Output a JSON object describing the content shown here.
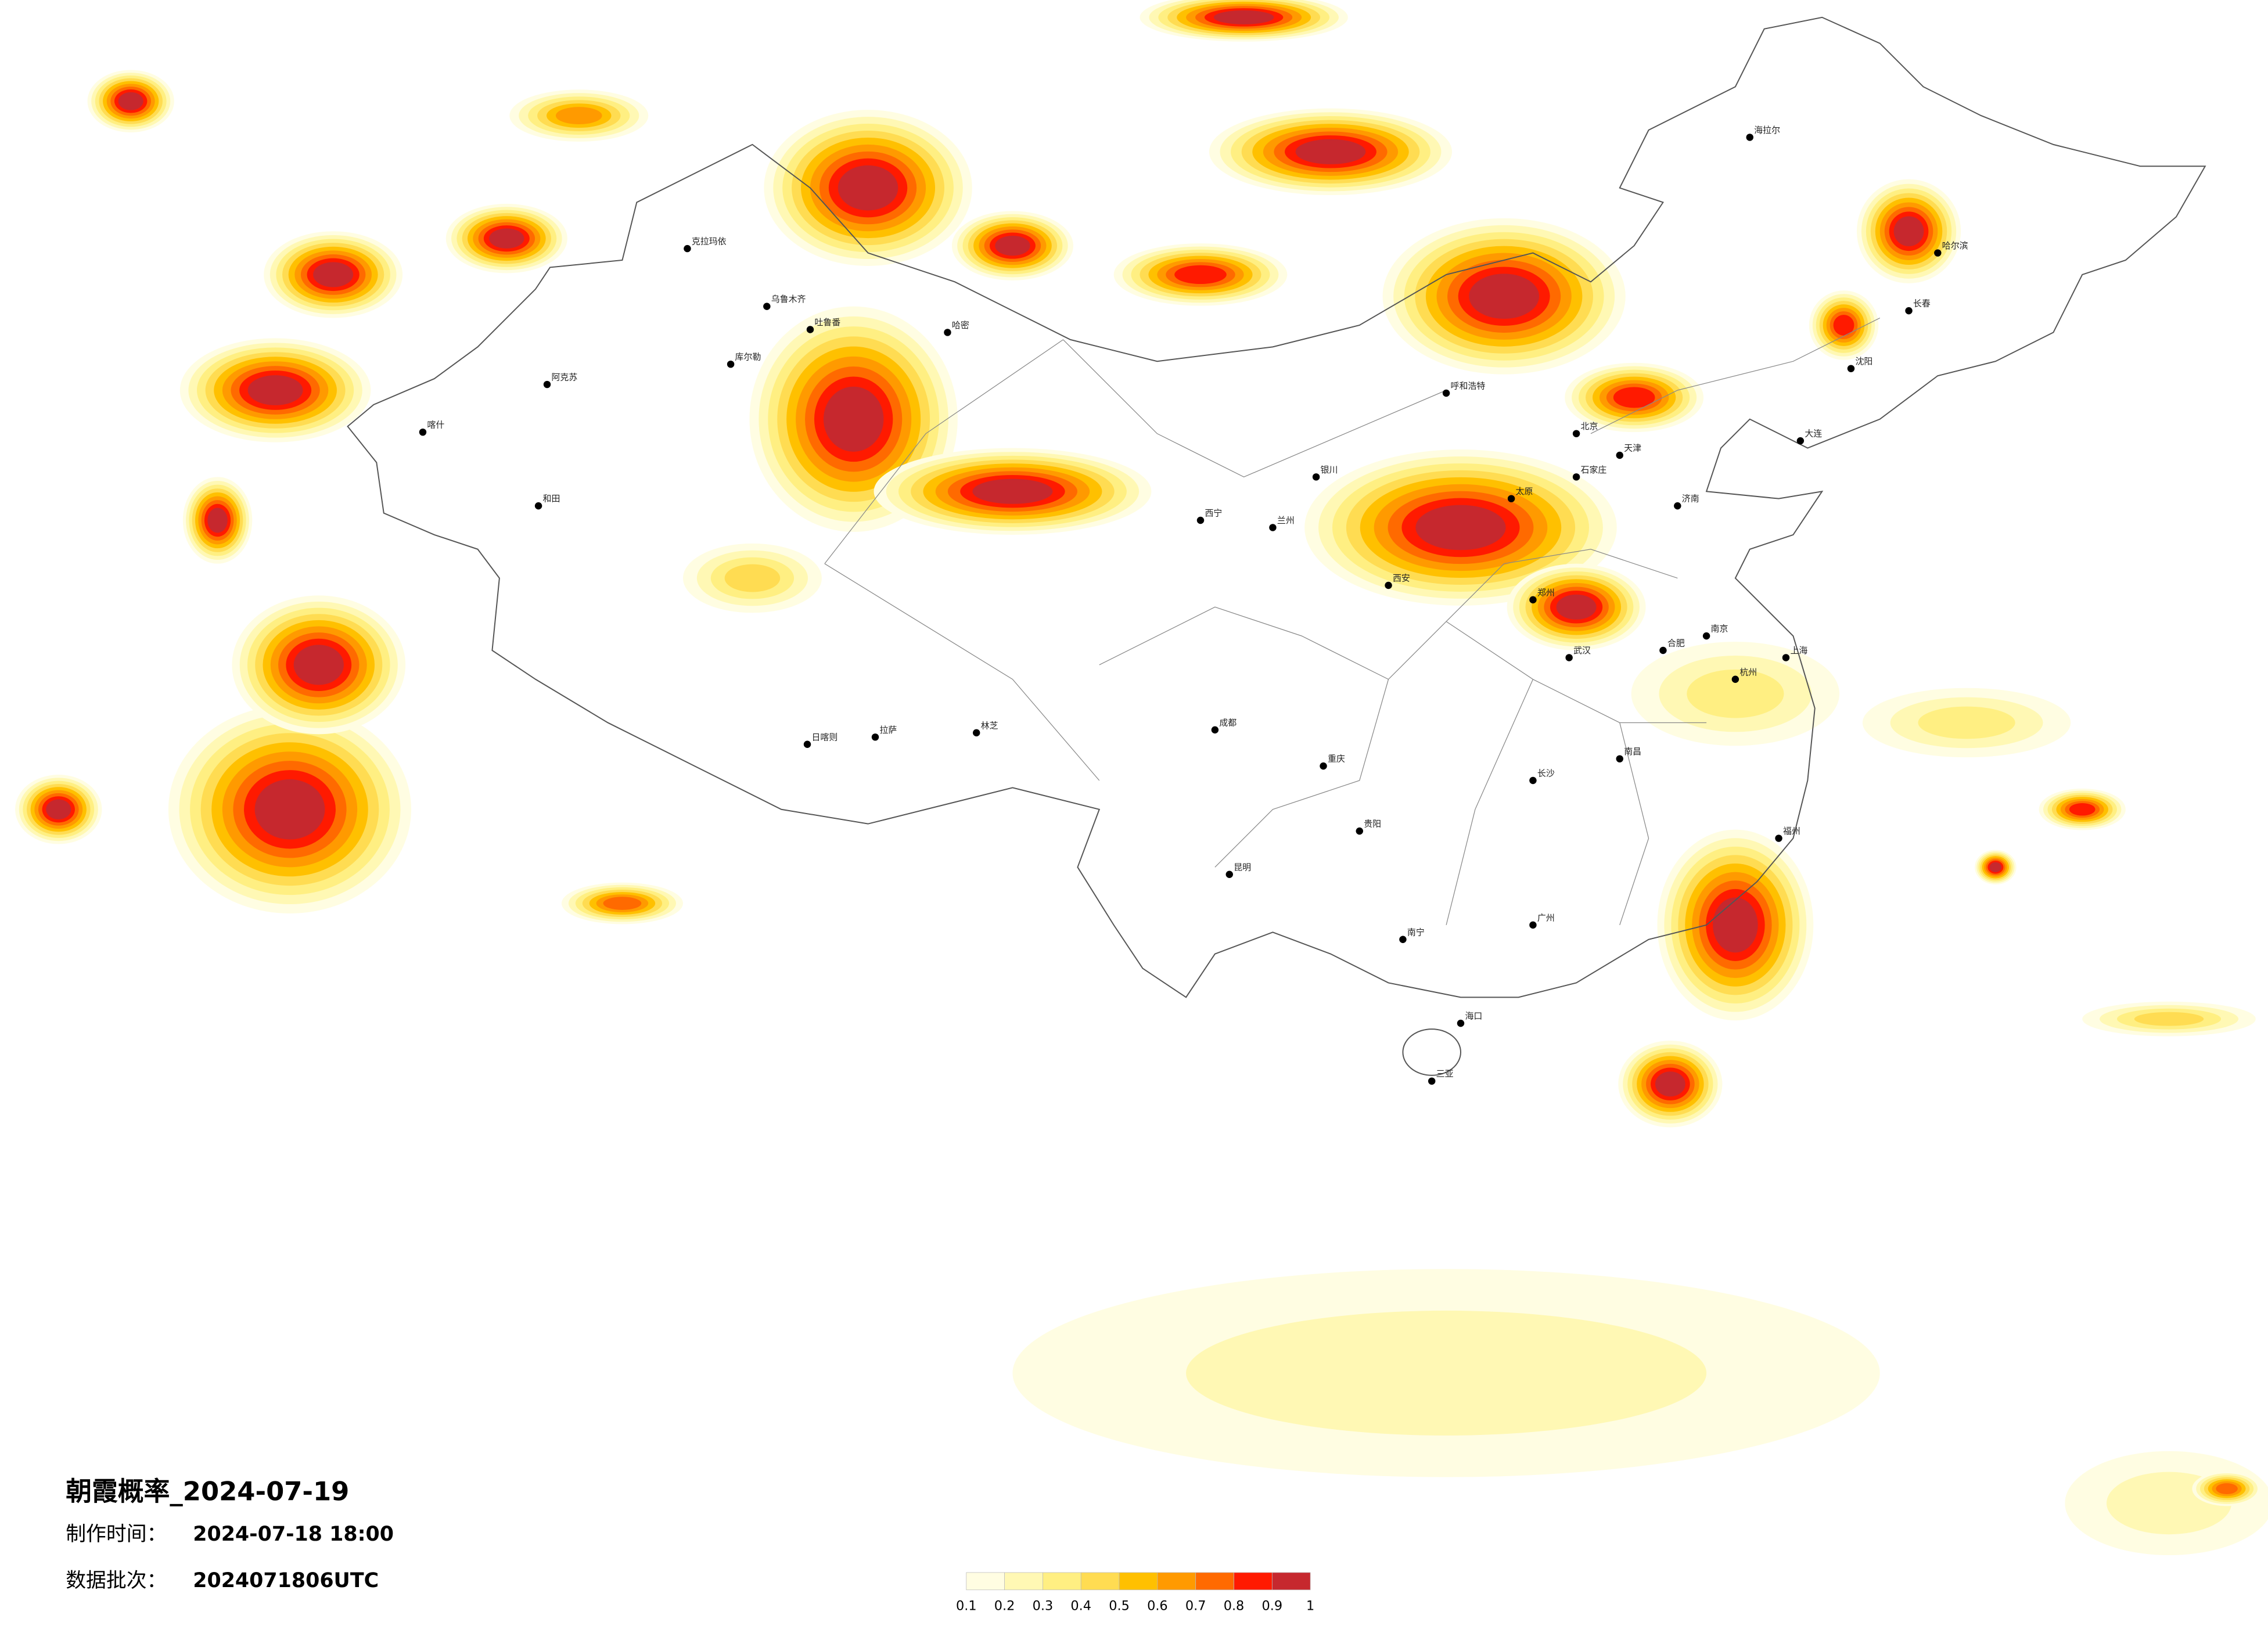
{
  "header": {
    "title": "朝霞概率_2024-07-19",
    "made_label": "制作时间：",
    "made_time": "2024-07-18 18:00",
    "batch_label": "数据批次：",
    "batch": "2024071806UTC"
  },
  "legend": {
    "ticks": [
      0.1,
      0.2,
      0.3,
      0.4,
      0.5,
      0.6,
      0.7,
      0.8,
      0.9,
      1
    ],
    "colors": [
      "#fffde2",
      "#fff8b4",
      "#ffef82",
      "#ffdc52",
      "#ffc000",
      "#ff9a00",
      "#ff6a00",
      "#ff1a00",
      "#c6282e"
    ]
  },
  "cities": [
    "克拉玛依",
    "乌鲁木齐",
    "吐鲁番",
    "哈密",
    "库尔勒",
    "阿克苏",
    "喀什",
    "和田",
    "拉萨",
    "日喀则",
    "林芝",
    "西宁",
    "兰州",
    "银川",
    "呼和浩特",
    "北京",
    "天津",
    "石家庄",
    "太原",
    "济南",
    "郑州",
    "西安",
    "成都",
    "重庆",
    "武汉",
    "长沙",
    "南昌",
    "杭州",
    "上海",
    "南京",
    "合肥",
    "福州",
    "广州",
    "南宁",
    "贵阳",
    "昆明",
    "海口",
    "哈尔滨",
    "长春",
    "沈阳",
    "大连",
    "海拉尔",
    "三亚"
  ]
}
